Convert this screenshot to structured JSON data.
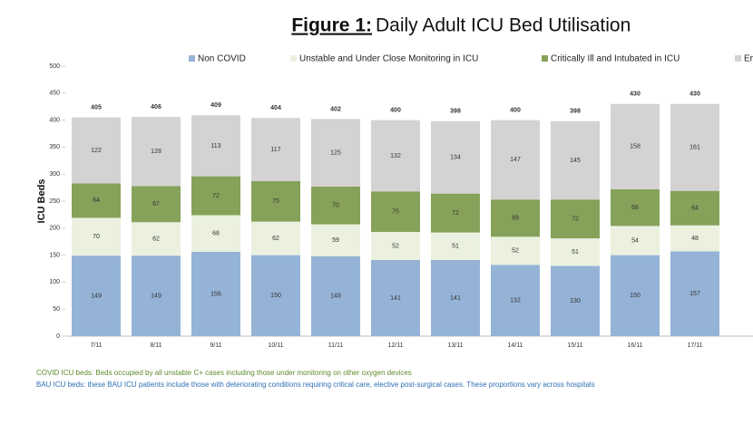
{
  "chart_data": {
    "type": "stacked-bar",
    "title_label": "Figure 1:",
    "title": "Daily Adult ICU Bed Utilisation",
    "y_label": "ICU Beds",
    "categories": [
      "7/11",
      "8/11",
      "9/11",
      "10/11",
      "11/11",
      "12/11",
      "13/11",
      "14/11",
      "15/11",
      "16/11",
      "17/11"
    ],
    "series": [
      {
        "name": "Non COVID",
        "color": "#95b3d7",
        "values": [
          149,
          149,
          156,
          150,
          148,
          141,
          141,
          132,
          130,
          150,
          157
        ]
      },
      {
        "name": "Unstable and Under Close Monitoring in ICU",
        "color": "#ebf1de",
        "values": [
          70,
          62,
          68,
          62,
          59,
          52,
          51,
          52,
          51,
          54,
          48
        ]
      },
      {
        "name": "Critically Ill and Intubated in ICU",
        "color": "#86a25a",
        "values": [
          64,
          67,
          72,
          75,
          70,
          75,
          72,
          69,
          72,
          68,
          64
        ]
      },
      {
        "name": "Er",
        "color": "#d4d2d2",
        "values": [
          122,
          128,
          113,
          117,
          125,
          132,
          134,
          147,
          145,
          158,
          161
        ]
      }
    ],
    "totals": [
      405,
      406,
      409,
      404,
      402,
      400,
      398,
      400,
      398,
      430,
      430
    ],
    "ylim": [
      0,
      500
    ],
    "yticks": [
      0,
      50,
      100,
      150,
      200,
      250,
      300,
      350,
      400,
      450,
      500
    ],
    "notes": [
      "COVID ICU beds: Beds occupied by all unstable C+ cases including those under monitoring on other oxygen devices",
      "BAU ICU beds: these BAU ICU patients include those with deteriorating conditions requiring critical care, elective post-surgical cases. These proportions vary across hospitals"
    ]
  }
}
